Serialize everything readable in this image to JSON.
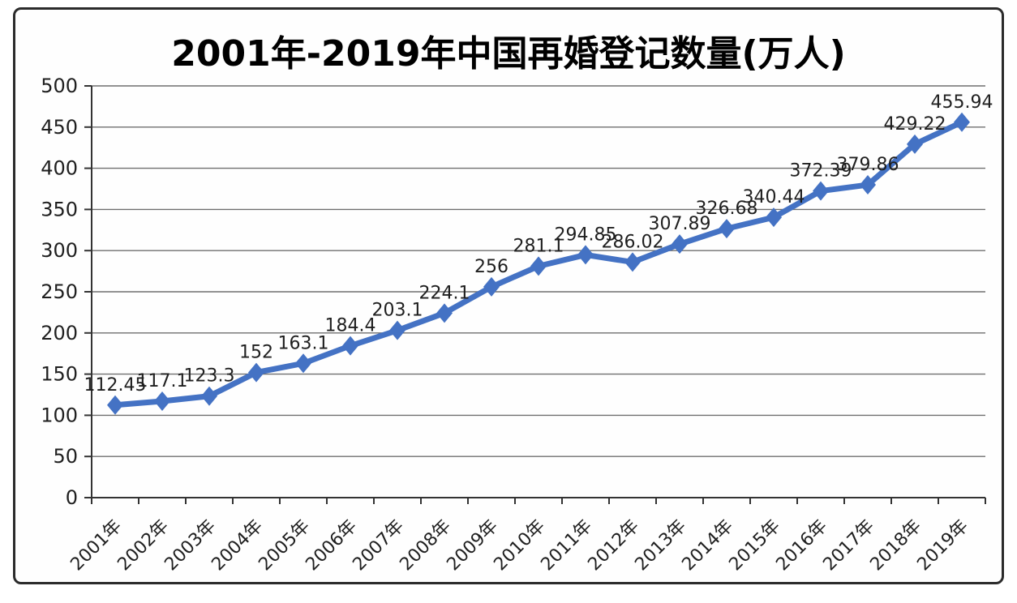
{
  "page": {
    "background": "#ffffff",
    "frame_border_color": "#2b2b2b"
  },
  "chart_data": {
    "type": "line",
    "title": "2001年-2019年中国再婚登记数量(万人)",
    "categories": [
      "2001年",
      "2002年",
      "2003年",
      "2004年",
      "2005年",
      "2006年",
      "2007年",
      "2008年",
      "2009年",
      "2010年",
      "2011年",
      "2012年",
      "2013年",
      "2014年",
      "2015年",
      "2016年",
      "2017年",
      "2018年",
      "2019年"
    ],
    "values": [
      112.45,
      117.1,
      123.3,
      152,
      163.1,
      184.4,
      203.1,
      224.1,
      256,
      281.1,
      294.85,
      286.02,
      307.89,
      326.68,
      340.44,
      372.39,
      379.86,
      429.22,
      455.94
    ],
    "point_labels": [
      "112.45",
      "117.1",
      "123.3",
      "152",
      "163.1",
      "184.4",
      "203.1",
      "224.1",
      "256",
      "281.1",
      "294.85",
      "286.02",
      "307.89",
      "326.68",
      "340.44",
      "372.39",
      "379.86",
      "429.22",
      "455.94"
    ],
    "xlabel": "",
    "ylabel": "",
    "ylim": [
      0,
      500
    ],
    "yticks": [
      0,
      50,
      100,
      150,
      200,
      250,
      300,
      350,
      400,
      450,
      500
    ],
    "grid": true,
    "legend": "none",
    "marker": "diamond",
    "line_color": "#4472C4",
    "gridline_color": "#6f6f6f",
    "axis_color": "#333333",
    "text_color": "#1f1f1f"
  }
}
